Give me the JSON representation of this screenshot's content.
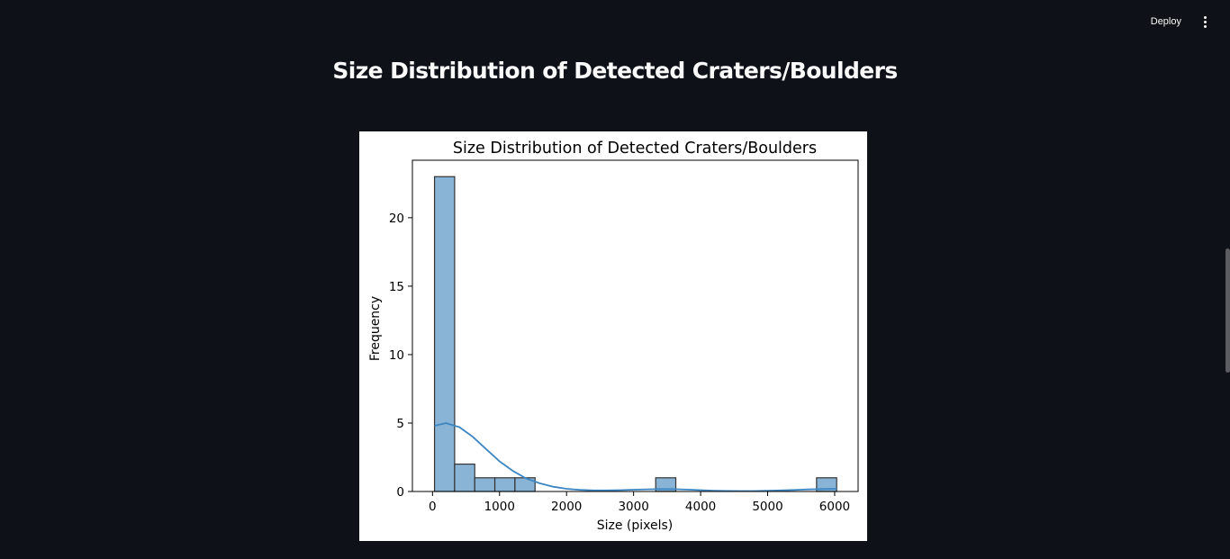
{
  "toolbar": {
    "deploy_label": "Deploy",
    "menu_icon": "vertical-ellipsis-icon"
  },
  "page": {
    "title": "Size Distribution of Detected Craters/Boulders"
  },
  "chart_data": {
    "type": "bar",
    "title": "Size Distribution of Detected Craters/Boulders",
    "xlabel": "Size (pixels)",
    "ylabel": "Frequency",
    "xlim": [
      -300,
      6350
    ],
    "ylim": [
      0,
      24.2
    ],
    "xticks": [
      0,
      1000,
      2000,
      3000,
      4000,
      5000,
      6000
    ],
    "yticks": [
      0,
      5,
      10,
      15,
      20
    ],
    "grid": false,
    "bar_color": "#8ab4d6",
    "bar_edge": "#333333",
    "kde_color": "#3b86c2",
    "bins": [
      {
        "start": 30,
        "end": 330,
        "count": 23
      },
      {
        "start": 330,
        "end": 630,
        "count": 2
      },
      {
        "start": 630,
        "end": 930,
        "count": 1
      },
      {
        "start": 930,
        "end": 1230,
        "count": 1
      },
      {
        "start": 1230,
        "end": 1530,
        "count": 1
      },
      {
        "start": 3330,
        "end": 3630,
        "count": 1
      },
      {
        "start": 5730,
        "end": 6030,
        "count": 1
      }
    ],
    "kde": {
      "x": [
        30,
        200,
        400,
        600,
        800,
        1000,
        1200,
        1400,
        1600,
        1800,
        2000,
        2200,
        2400,
        2600,
        2800,
        3000,
        3200,
        3400,
        3600,
        3800,
        4000,
        4200,
        4400,
        4600,
        4800,
        5000,
        5200,
        5400,
        5600,
        5800,
        6030
      ],
      "y": [
        4.8,
        5.0,
        4.7,
        4.0,
        3.1,
        2.2,
        1.5,
        0.95,
        0.6,
        0.35,
        0.2,
        0.12,
        0.08,
        0.08,
        0.1,
        0.13,
        0.16,
        0.18,
        0.17,
        0.14,
        0.1,
        0.06,
        0.04,
        0.03,
        0.03,
        0.05,
        0.08,
        0.11,
        0.15,
        0.18,
        0.2
      ]
    }
  }
}
